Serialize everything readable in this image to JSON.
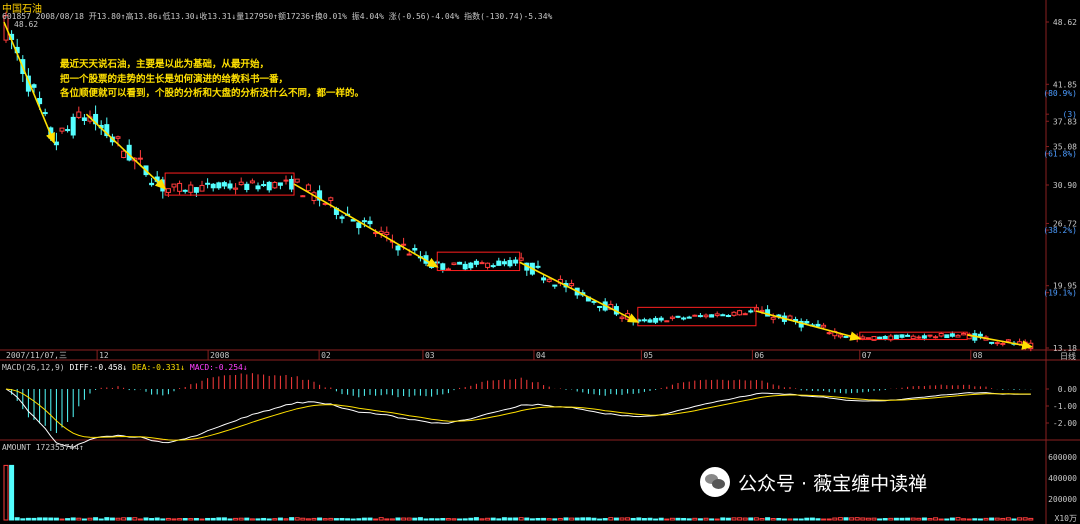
{
  "header": {
    "title": "中国石油",
    "info_line": "601857 2008/08/18 开13.80↑高13.86↓低13.30↓收13.31↓量127950↑额17236↑换0.01% 振4.04% 涨(-0.56)-4.04% 指数(-130.74)-5.34%"
  },
  "annotation": {
    "lines": [
      "最近天天说石油，主要是以此为基础，从最开始，",
      "把一个股票的走势的生长是如何演进的给教科书一番，",
      "各位顺便就可以看到，个股的分析和大盘的分析没什么不同，都一样的。"
    ]
  },
  "price_axis": {
    "labels": [
      {
        "text": "48.62",
        "price": 48.62
      },
      {
        "text": "41.85",
        "price": 41.85
      },
      {
        "text": "(80.9%)",
        "price": 40.9
      },
      {
        "text": "(3)",
        "price": 38.6
      },
      {
        "text": "37.83",
        "price": 37.83
      },
      {
        "text": "35.08",
        "price": 35.08
      },
      {
        "text": "(61.8%)",
        "price": 34.3
      },
      {
        "text": "30.90",
        "price": 30.9
      },
      {
        "text": "26.72",
        "price": 26.72
      },
      {
        "text": "(38.2%)",
        "price": 26.0
      },
      {
        "text": "19.95",
        "price": 19.95
      },
      {
        "text": "(19.1%)",
        "price": 19.2
      },
      {
        "text": "13.18",
        "price": 13.18
      }
    ],
    "max_label": "48.62",
    "min_label": "13.18"
  },
  "time_axis": {
    "start_label": "2007/11/07,三",
    "labels": [
      "12",
      "2008",
      "02",
      "03",
      "04",
      "05",
      "06",
      "07",
      "08"
    ],
    "period_label": "日线"
  },
  "macd": {
    "title_prefix": "MACD(26,12,9)",
    "diff_label": "DIFF:-0.458↓",
    "dea_label": "DEA:-0.331↓",
    "macd_label": "MACD:-0.254↓",
    "axis_labels": [
      {
        "text": "0.00",
        "value": 0.0
      },
      {
        "text": "-1.00",
        "value": -1.0
      },
      {
        "text": "-2.00",
        "value": -2.0
      }
    ]
  },
  "amount": {
    "title": "AMOUNT 172355744↑",
    "axis_labels": [
      {
        "text": "600000",
        "value": 600000
      },
      {
        "text": "400000",
        "value": 400000
      },
      {
        "text": "200000",
        "value": 200000
      }
    ],
    "unit_label": "X10万"
  },
  "watermark": {
    "text": "公众号 · 薇宝缠中读禅"
  },
  "colors": {
    "up": "#ff3c3c",
    "down": "#54ffff",
    "trend_arrow": "#ffe000",
    "box": "#ff2020",
    "diff_line": "#ffffff",
    "dea_line": "#ffe000",
    "macd_label": "#ff40ff"
  },
  "chart_data": {
    "type": "candlestick",
    "title": "中国石油",
    "period": "daily",
    "ylim": [
      13.18,
      48.62
    ],
    "x_range": [
      "2007/11/07",
      "2008/08/18"
    ],
    "price_path_keypoints": [
      {
        "date": "2007/11/05",
        "price": 48.62
      },
      {
        "date": "2007/11/19",
        "price": 35.5
      },
      {
        "date": "2007/11/28",
        "price": 38.6
      },
      {
        "date": "2007/12/20",
        "price": 30.5
      },
      {
        "date": "2008/01/25",
        "price": 31.0
      },
      {
        "date": "2008/03/05",
        "price": 22.0
      },
      {
        "date": "2008/03/28",
        "price": 22.5
      },
      {
        "date": "2008/04/30",
        "price": 16.0
      },
      {
        "date": "2008/06/02",
        "price": 17.2
      },
      {
        "date": "2008/07/01",
        "price": 14.2
      },
      {
        "date": "2008/07/31",
        "price": 14.6
      },
      {
        "date": "2008/08/18",
        "price": 13.31
      }
    ],
    "consolidation_boxes": [
      {
        "from": "2007/12/20",
        "to": "2008/01/25",
        "low": 29.8,
        "high": 32.2
      },
      {
        "from": "2008/03/05",
        "to": "2008/03/28",
        "low": 21.6,
        "high": 23.6
      },
      {
        "from": "2008/04/30",
        "to": "2008/06/02",
        "low": 15.6,
        "high": 17.6
      },
      {
        "from": "2008/07/01",
        "to": "2008/07/31",
        "low": 14.1,
        "high": 14.9
      }
    ],
    "last_bar": {
      "date": "2008/08/18",
      "open": 13.8,
      "high": 13.86,
      "low": 13.3,
      "close": 13.31,
      "volume": 127950,
      "amount": 17236
    },
    "macd_params": [
      26,
      12,
      9
    ],
    "macd_last": {
      "diff": -0.458,
      "dea": -0.331,
      "macd": -0.254
    },
    "amount_last": 172355744
  }
}
